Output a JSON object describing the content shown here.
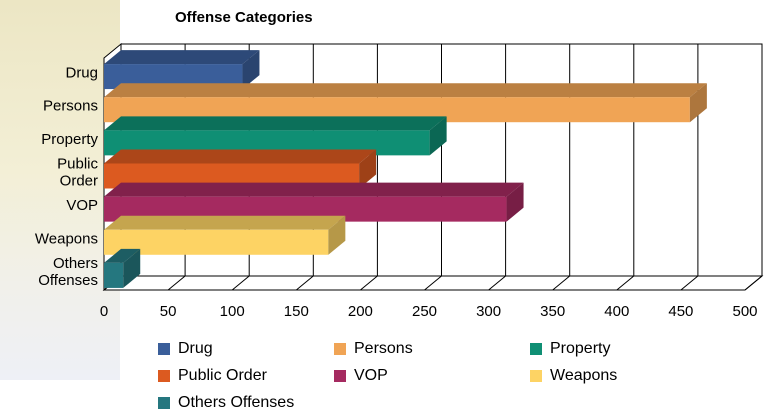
{
  "chart_data": {
    "type": "bar",
    "orientation": "horizontal",
    "title": "Offense Categories",
    "xlabel": "",
    "ylabel": "",
    "xlim": [
      0,
      500
    ],
    "xticks": [
      "0",
      "50",
      "100",
      "150",
      "200",
      "250",
      "300",
      "350",
      "400",
      "450",
      "500"
    ],
    "categories": [
      "Drug",
      "Persons",
      "Property",
      "Public Order",
      "VOP",
      "Weapons",
      "Others Offenses"
    ],
    "category_labels": [
      [
        "Drug"
      ],
      [
        "Persons"
      ],
      [
        "Property"
      ],
      [
        "Public",
        "Order"
      ],
      [
        "VOP"
      ],
      [
        "Weapons"
      ],
      [
        "Others",
        "Offenses"
      ]
    ],
    "values": [
      108,
      457,
      254,
      199,
      314,
      175,
      15
    ],
    "colors": [
      "#3a5e9a",
      "#f0a455",
      "#0f8f74",
      "#dc5a20",
      "#a52a60",
      "#fdd364",
      "#25777f"
    ],
    "grid": true,
    "legend_position": "bottom"
  },
  "legend": {
    "items": [
      {
        "label": "Drug",
        "color": "#3a5e9a"
      },
      {
        "label": "Persons",
        "color": "#f0a455"
      },
      {
        "label": "Property",
        "color": "#0f8f74"
      },
      {
        "label": "Public Order",
        "color": "#dc5a20"
      },
      {
        "label": "VOP",
        "color": "#a52a60"
      },
      {
        "label": "Weapons",
        "color": "#fdd364"
      },
      {
        "label": "Others Offenses",
        "color": "#25777f"
      }
    ]
  }
}
